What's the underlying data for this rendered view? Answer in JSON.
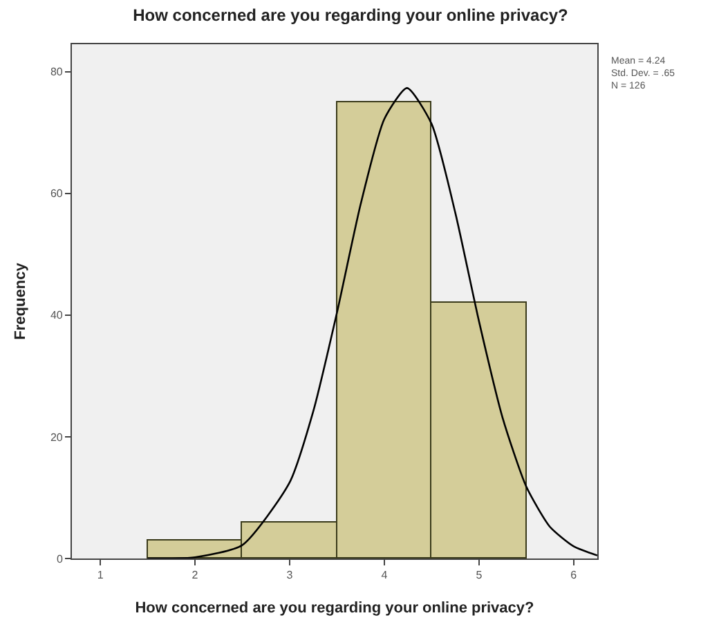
{
  "chart_data": {
    "type": "histogram",
    "title": "How concerned are you regarding your online privacy?",
    "xlabel": "How concerned are you regarding your online privacy?",
    "ylabel": "Frequency",
    "bins": [
      1.5,
      2.5,
      3.5,
      4.5,
      5.5
    ],
    "series": [
      {
        "color": "#d4cd99",
        "values": [
          3,
          6,
          75,
          42
        ]
      },
      {
        "type": "line",
        "color": "#000000",
        "x": [
          1.5,
          2.0,
          2.5,
          3.0,
          3.25,
          3.5,
          3.75,
          4.0,
          4.24,
          4.5,
          4.75,
          5.0,
          5.25,
          5.5,
          5.75,
          6.0,
          6.25
        ],
        "values": [
          0.0,
          0.2,
          2.2,
          12.5,
          24.2,
          40.4,
          58.2,
          72.2,
          77.3,
          71.4,
          56.8,
          39.0,
          23.1,
          11.8,
          5.2,
          2.0,
          0.5
        ]
      }
    ],
    "xlim": [
      0.7,
      6.25
    ],
    "xticks": [
      1,
      2,
      3,
      4,
      5,
      6
    ],
    "ylim": [
      0,
      84.5
    ],
    "yticks": [
      0,
      20,
      40,
      60,
      80
    ],
    "grid": false,
    "marker": "none",
    "line_style": "solid",
    "annotations": [
      "Mean = 4.24",
      "Std. Dev. = .65",
      "N = 126"
    ]
  }
}
